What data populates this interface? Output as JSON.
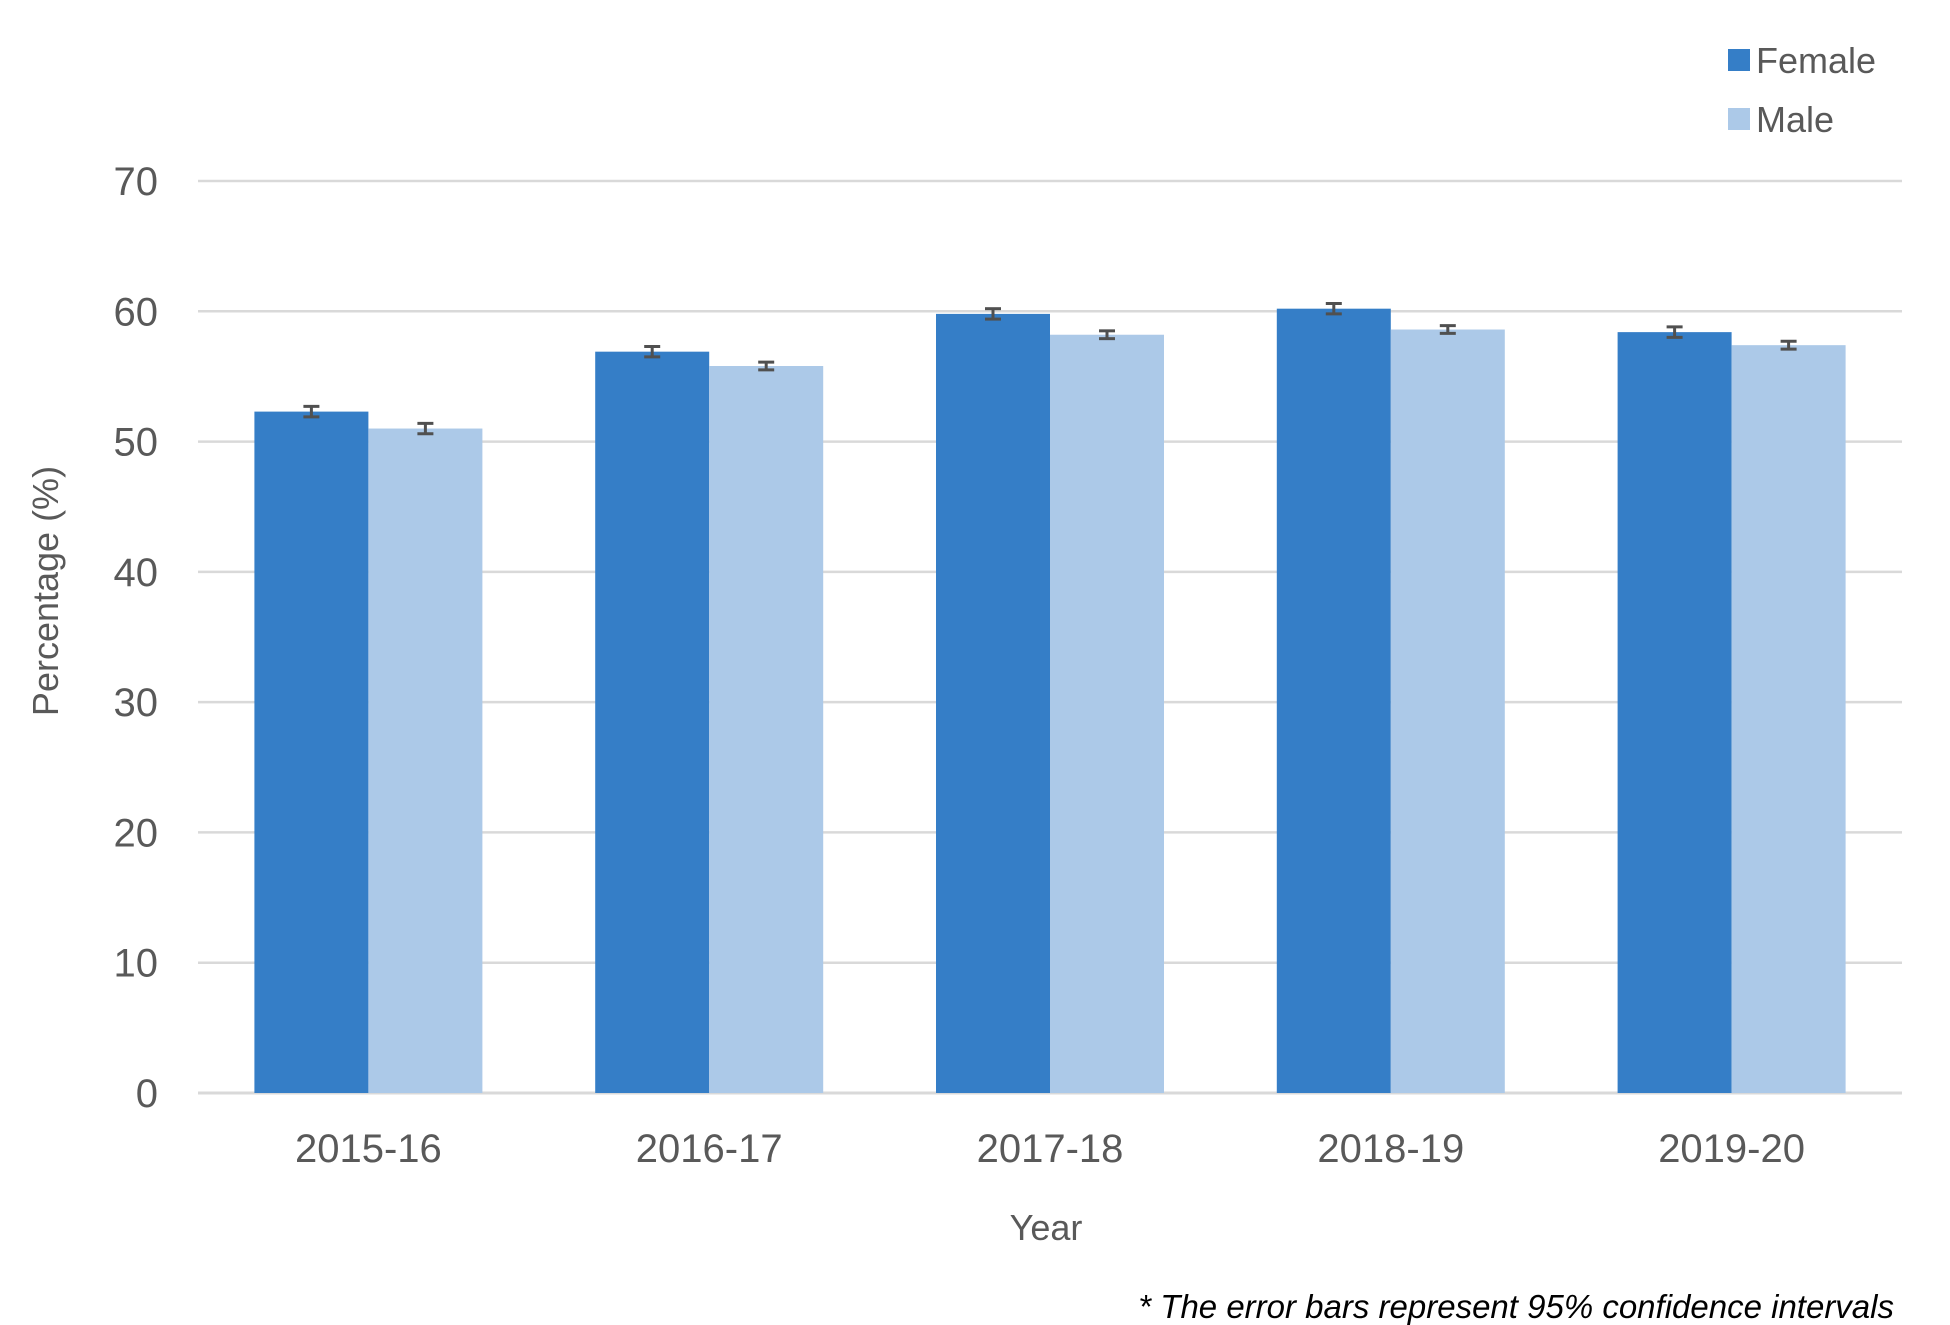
{
  "chart_data": {
    "type": "bar",
    "title": "",
    "xlabel": "Year",
    "ylabel": "Percentage (%)",
    "categories": [
      "2015-16",
      "2016-17",
      "2017-18",
      "2018-19",
      "2019-20"
    ],
    "ylim": [
      0,
      70
    ],
    "yticks": [
      0,
      10,
      20,
      30,
      40,
      50,
      60,
      70
    ],
    "grid": true,
    "legend_position": "top-right",
    "series": [
      {
        "name": "Female",
        "color": "#357EC7",
        "values": [
          52.3,
          56.9,
          59.8,
          60.2,
          58.4
        ],
        "ci_low": [
          51.9,
          56.5,
          59.4,
          59.8,
          58.0
        ],
        "ci_high": [
          52.7,
          57.3,
          60.2,
          60.6,
          58.8
        ]
      },
      {
        "name": "Male",
        "color": "#ACC9E8",
        "values": [
          51.0,
          55.8,
          58.2,
          58.6,
          57.4
        ],
        "ci_low": [
          50.6,
          55.5,
          57.9,
          58.3,
          57.1
        ],
        "ci_high": [
          51.4,
          56.1,
          58.5,
          58.9,
          57.7
        ]
      }
    ],
    "error_bar_color": "#505050",
    "gridline_color": "#D9D9D9",
    "note": "* The error bars represent 95%  confidence intervals"
  }
}
